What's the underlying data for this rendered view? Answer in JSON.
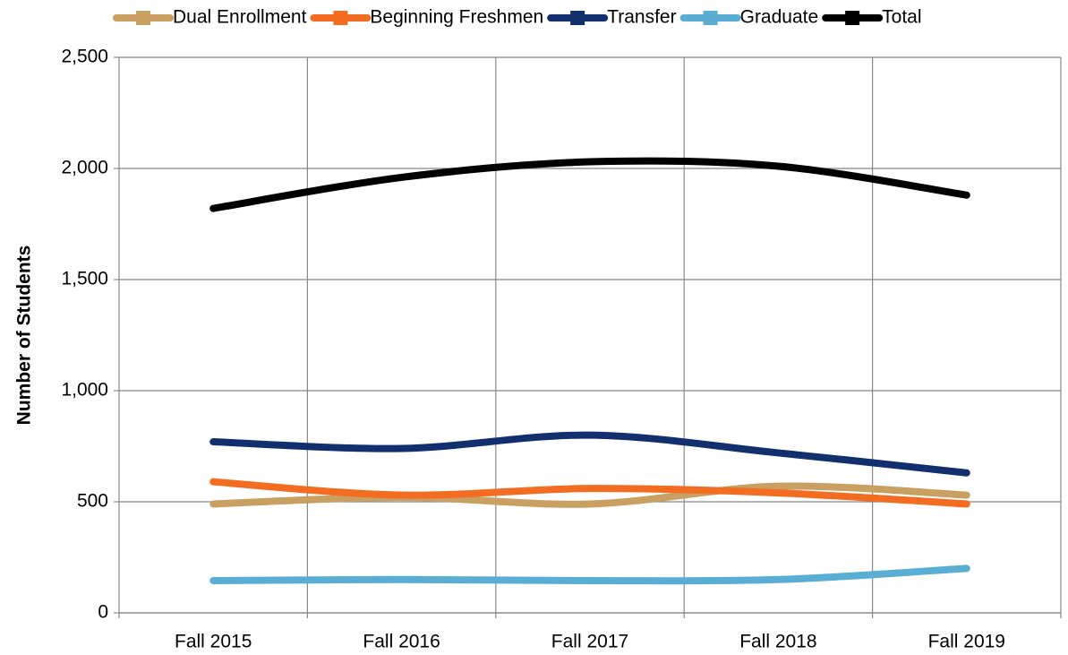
{
  "chart_data": {
    "type": "line",
    "categories": [
      "Fall 2015",
      "Fall 2016",
      "Fall 2017",
      "Fall 2018",
      "Fall 2019"
    ],
    "series": [
      {
        "name": "Dual Enrollment",
        "color": "#c9a062",
        "values": [
          490,
          520,
          490,
          570,
          530
        ]
      },
      {
        "name": "Beginning Freshmen",
        "color": "#f26d21",
        "values": [
          590,
          530,
          560,
          540,
          490
        ]
      },
      {
        "name": "Transfer",
        "color": "#13306e",
        "values": [
          770,
          740,
          800,
          720,
          630
        ]
      },
      {
        "name": "Graduate",
        "color": "#5aaed3",
        "values": [
          145,
          150,
          145,
          150,
          200
        ]
      },
      {
        "name": "Total",
        "color": "#000000",
        "values": [
          1820,
          1960,
          2030,
          2010,
          1880
        ]
      }
    ],
    "y_label": "Number of Students",
    "ylim": [
      0,
      2500
    ],
    "yticks": [
      0,
      500,
      {
        "value": 1000,
        "label": "1,000"
      },
      {
        "value": 1500,
        "label": "1,500"
      },
      {
        "value": 2000,
        "label": "2,000"
      },
      {
        "value": 2500,
        "label": "2,500"
      }
    ],
    "grid": true,
    "smooth": true,
    "legend": "top"
  }
}
